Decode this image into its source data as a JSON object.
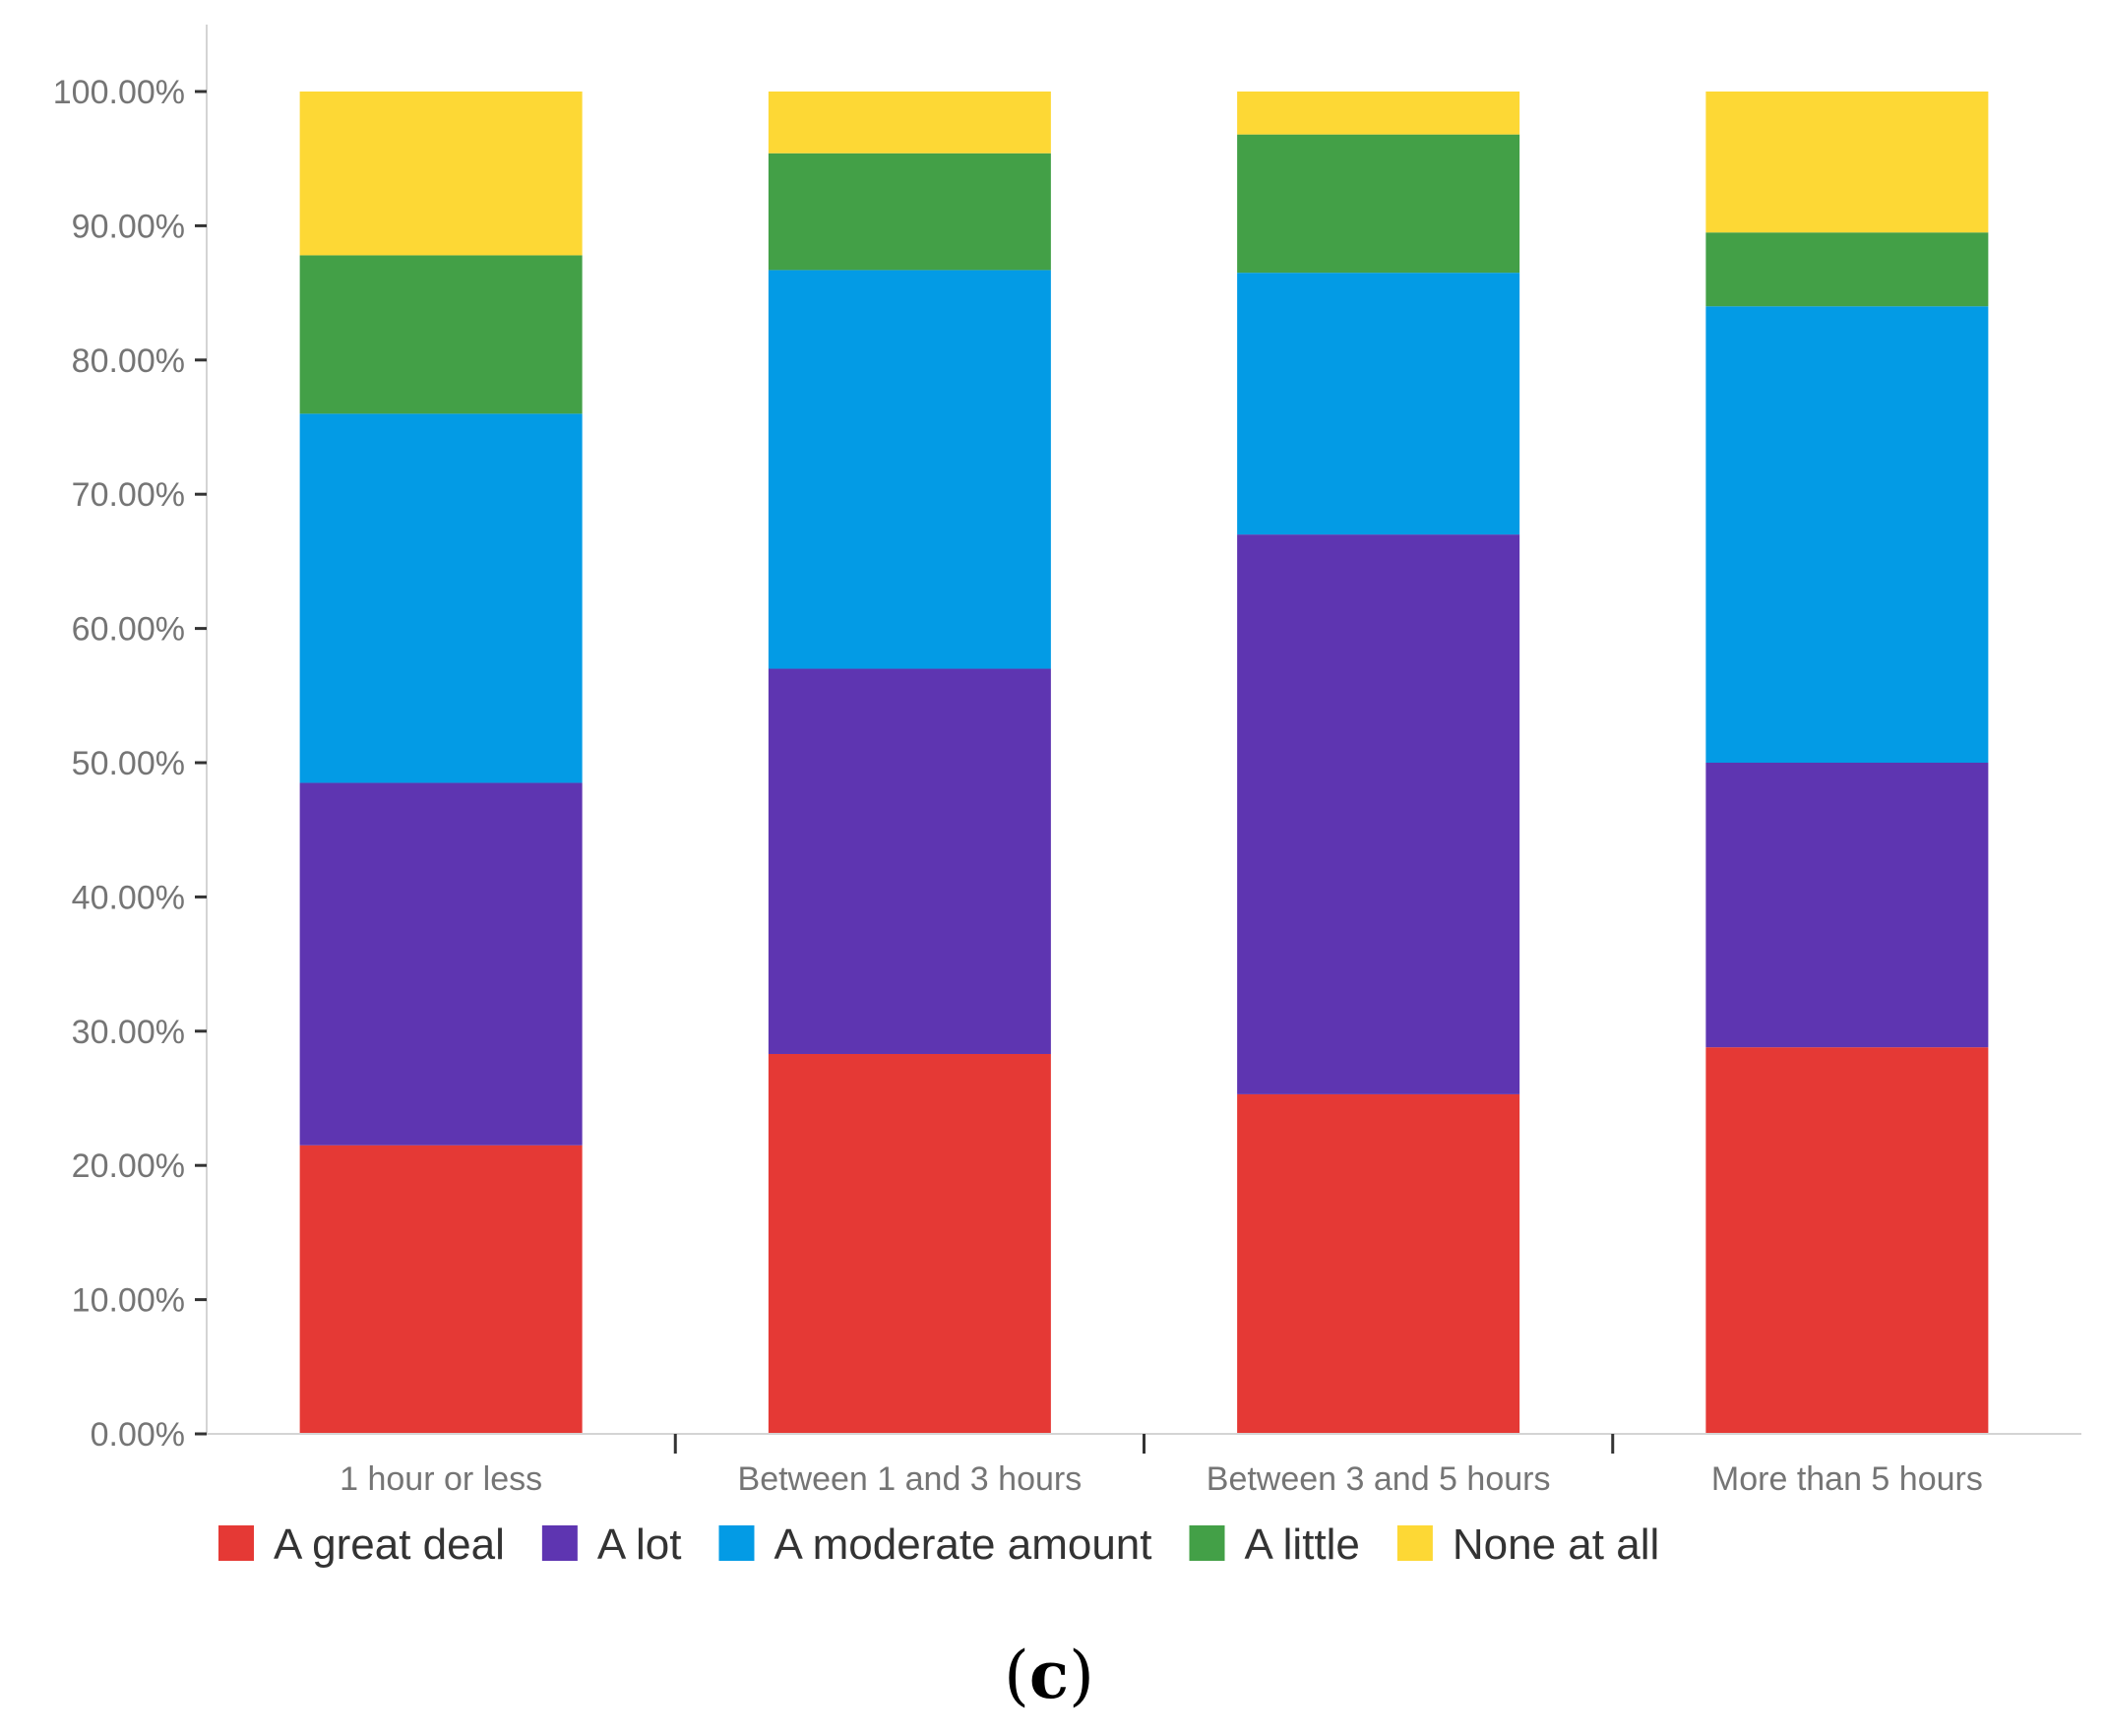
{
  "chart_data": {
    "type": "bar",
    "stacked": true,
    "title": "",
    "xlabel": "",
    "ylabel": "",
    "ylim": [
      0,
      100
    ],
    "y_ticks": [
      "0.00%",
      "10.00%",
      "20.00%",
      "30.00%",
      "40.00%",
      "50.00%",
      "60.00%",
      "70.00%",
      "80.00%",
      "90.00%",
      "100.00%"
    ],
    "categories": [
      "1 hour or less",
      "Between 1 and 3 hours",
      "Between 3 and 5 hours",
      "More than 5 hours"
    ],
    "series": [
      {
        "name": "A great deal",
        "color": "#e53935",
        "values": [
          21.5,
          28.3,
          25.3,
          28.8
        ]
      },
      {
        "name": "A lot",
        "color": "#5e35b1",
        "values": [
          27.0,
          28.7,
          41.7,
          21.2
        ]
      },
      {
        "name": "A moderate amount",
        "color": "#039be5",
        "values": [
          27.5,
          29.7,
          19.5,
          34.0
        ]
      },
      {
        "name": "A little",
        "color": "#43a047",
        "values": [
          11.8,
          8.7,
          10.3,
          5.5
        ]
      },
      {
        "name": "None at all",
        "color": "#fdd835",
        "values": [
          12.2,
          4.6,
          3.2,
          10.5
        ]
      }
    ],
    "legend_position": "bottom-left"
  },
  "caption": {
    "open": "(",
    "letter": "c",
    "close": ")"
  }
}
